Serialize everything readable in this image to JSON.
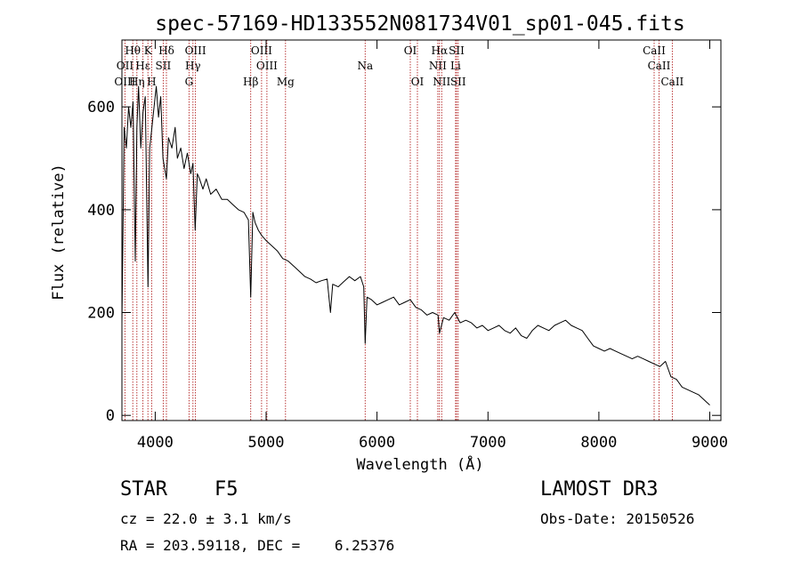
{
  "chart_data": {
    "type": "line",
    "title": "spec-57169-HD133552N081734V01_sp01-045.fits",
    "xlabel": "Wavelength (Å)",
    "ylabel": "Flux (relative)",
    "xlim": [
      3700,
      9100
    ],
    "ylim": [
      -10,
      730
    ],
    "x_ticks": [
      4000,
      5000,
      6000,
      7000,
      8000,
      9000
    ],
    "y_ticks": [
      0,
      200,
      400,
      600
    ],
    "series": [
      {
        "name": "flux",
        "x": [
          3700,
          3720,
          3740,
          3760,
          3780,
          3800,
          3820,
          3835,
          3850,
          3870,
          3890,
          3910,
          3935,
          3950,
          3970,
          3990,
          4010,
          4030,
          4050,
          4070,
          4101,
          4120,
          4150,
          4180,
          4200,
          4230,
          4260,
          4290,
          4320,
          4340,
          4360,
          4380,
          4400,
          4430,
          4460,
          4500,
          4550,
          4600,
          4650,
          4700,
          4750,
          4800,
          4840,
          4861,
          4880,
          4900,
          4930,
          4960,
          5000,
          5050,
          5100,
          5150,
          5200,
          5250,
          5300,
          5350,
          5400,
          5450,
          5500,
          5550,
          5580,
          5600,
          5650,
          5700,
          5750,
          5800,
          5850,
          5880,
          5893,
          5910,
          5950,
          6000,
          6050,
          6100,
          6150,
          6200,
          6250,
          6300,
          6350,
          6400,
          6450,
          6500,
          6550,
          6563,
          6600,
          6650,
          6700,
          6750,
          6800,
          6850,
          6900,
          6950,
          7000,
          7050,
          7100,
          7150,
          7200,
          7250,
          7300,
          7350,
          7400,
          7450,
          7500,
          7550,
          7600,
          7650,
          7700,
          7750,
          7800,
          7850,
          7900,
          7950,
          8000,
          8050,
          8100,
          8150,
          8200,
          8250,
          8300,
          8350,
          8400,
          8450,
          8500,
          8550,
          8600,
          8650,
          8700,
          8750,
          8800,
          8850,
          8900,
          8950,
          9000
        ],
        "y": [
          180,
          560,
          520,
          600,
          560,
          610,
          300,
          560,
          640,
          520,
          590,
          620,
          250,
          520,
          560,
          600,
          640,
          580,
          620,
          500,
          460,
          540,
          520,
          560,
          500,
          520,
          480,
          510,
          470,
          490,
          360,
          470,
          460,
          440,
          460,
          430,
          440,
          420,
          420,
          410,
          400,
          395,
          380,
          230,
          395,
          375,
          360,
          350,
          340,
          330,
          320,
          305,
          300,
          290,
          280,
          270,
          265,
          258,
          262,
          265,
          200,
          255,
          250,
          260,
          270,
          262,
          270,
          250,
          140,
          230,
          225,
          215,
          220,
          225,
          230,
          215,
          220,
          225,
          210,
          205,
          195,
          200,
          195,
          160,
          190,
          185,
          200,
          180,
          185,
          180,
          170,
          175,
          165,
          170,
          175,
          165,
          160,
          170,
          155,
          150,
          165,
          175,
          170,
          165,
          175,
          180,
          185,
          175,
          170,
          165,
          150,
          135,
          130,
          125,
          130,
          125,
          120,
          115,
          110,
          115,
          110,
          105,
          100,
          95,
          105,
          75,
          70,
          55,
          50,
          45,
          40,
          30,
          20
        ]
      }
    ],
    "spectral_lines": [
      {
        "name": "Hθ",
        "wavelength": 3798,
        "row": 1
      },
      {
        "name": "K",
        "wavelength": 3934,
        "row": 1
      },
      {
        "name": "Hδ",
        "wavelength": 4101,
        "row": 1
      },
      {
        "name": "OIII",
        "wavelength": 4363,
        "row": 1
      },
      {
        "name": "OIII",
        "wavelength": 4959,
        "row": 1
      },
      {
        "name": "OI",
        "wavelength": 6300,
        "row": 1
      },
      {
        "name": "Hα",
        "wavelength": 6563,
        "row": 1
      },
      {
        "name": "SII",
        "wavelength": 6717,
        "row": 1
      },
      {
        "name": "CaII",
        "wavelength": 8498,
        "row": 1
      },
      {
        "name": "OII",
        "wavelength": 3727,
        "row": 2
      },
      {
        "name": "Hε",
        "wavelength": 3889,
        "row": 2
      },
      {
        "name": "SII",
        "wavelength": 4072,
        "row": 2
      },
      {
        "name": "Hγ",
        "wavelength": 4340,
        "row": 2
      },
      {
        "name": "OIII",
        "wavelength": 5007,
        "row": 2
      },
      {
        "name": "Na",
        "wavelength": 5893,
        "row": 2
      },
      {
        "name": "NII",
        "wavelength": 6548,
        "row": 2
      },
      {
        "name": "Li",
        "wavelength": 6708,
        "row": 2
      },
      {
        "name": "CaII",
        "wavelength": 8542,
        "row": 2
      },
      {
        "name": "OIII",
        "wavelength": 3727,
        "row": 3
      },
      {
        "name": "Hη",
        "wavelength": 3835,
        "row": 3
      },
      {
        "name": "H",
        "wavelength": 3968,
        "row": 3
      },
      {
        "name": "G",
        "wavelength": 4305,
        "row": 3
      },
      {
        "name": "Hβ",
        "wavelength": 4861,
        "row": 3
      },
      {
        "name": "Mg",
        "wavelength": 5175,
        "row": 3
      },
      {
        "name": "OI",
        "wavelength": 6364,
        "row": 3
      },
      {
        "name": "NII",
        "wavelength": 6583,
        "row": 3
      },
      {
        "name": "SII",
        "wavelength": 6731,
        "row": 3
      },
      {
        "name": "CaII",
        "wavelength": 8662,
        "row": 3
      }
    ],
    "line_markers": [
      3727,
      3798,
      3835,
      3889,
      3934,
      3968,
      4072,
      4101,
      4305,
      4340,
      4363,
      4861,
      4959,
      5007,
      5175,
      5893,
      6300,
      6364,
      6548,
      6563,
      6583,
      6708,
      6717,
      6731,
      8498,
      8542,
      8662
    ],
    "colors": {
      "line_marker": "#b22222",
      "spectrum": "#000000",
      "axes": "#000000"
    }
  },
  "info": {
    "object_class": "STAR",
    "subclass": "F5",
    "survey": "LAMOST DR3",
    "redshift": "cz = 22.0 ± 3.1 km/s",
    "obs_date": "Obs-Date: 20150526",
    "coords": "RA = 203.59118, DEC =    6.25376"
  }
}
